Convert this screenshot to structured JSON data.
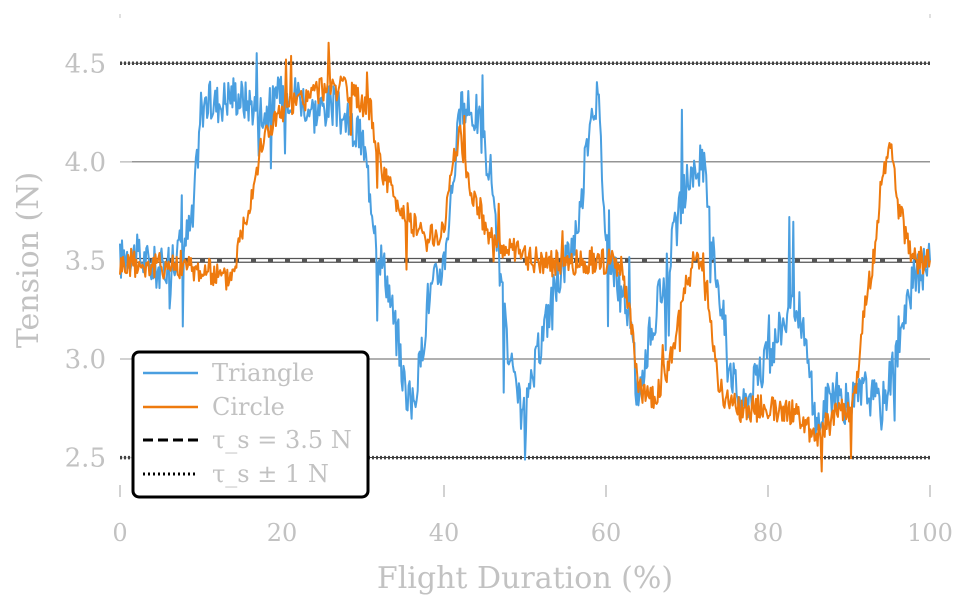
{
  "chart_data": {
    "type": "line",
    "title": "",
    "xlabel": "Flight Duration (%)",
    "ylabel": "Tension (N)",
    "xlim": [
      0,
      100
    ],
    "ylim": [
      2.3,
      4.75
    ],
    "x_ticks": [
      "0",
      "20",
      "40",
      "60",
      "80",
      "100"
    ],
    "y_ticks": [
      "2.5",
      "3.0",
      "3.5",
      "4.0",
      "4.5"
    ],
    "grid": "horizontal lines at y ticks",
    "legend_position": "lower-left",
    "legend": {
      "triangle": "Triangle",
      "circle": "Circle",
      "setpoint": "τ_s = 3.5 N",
      "bounds": "τ_s ± 1 N"
    },
    "reference_lines": [
      {
        "name": "setpoint",
        "y": 3.5,
        "style": "dashed"
      },
      {
        "name": "bounds",
        "y": [
          2.5,
          4.5
        ],
        "style": "dotted"
      }
    ],
    "series": [
      {
        "name": "Triangle",
        "color": "#4a9fe0",
        "x": [
          0,
          1,
          3,
          5,
          6,
          7,
          8,
          9,
          10,
          12,
          14,
          16,
          18,
          20,
          22,
          24,
          26,
          28,
          30,
          32,
          33,
          34,
          35,
          36,
          37,
          38,
          40,
          42,
          44,
          46,
          47,
          48,
          49,
          50,
          52,
          54,
          56,
          57,
          58,
          59,
          60,
          61,
          62,
          63,
          64,
          65,
          66,
          68,
          70,
          72,
          73,
          74,
          75,
          76,
          77,
          78,
          80,
          82,
          84,
          86,
          88,
          90,
          91,
          92,
          94,
          96,
          98,
          100
        ],
        "y": [
          3.5,
          3.55,
          3.5,
          3.45,
          3.5,
          3.55,
          3.6,
          3.7,
          4.3,
          4.3,
          4.35,
          4.3,
          4.25,
          4.35,
          4.35,
          4.25,
          4.3,
          4.2,
          4.1,
          3.55,
          3.4,
          3.15,
          2.9,
          2.75,
          2.95,
          3.3,
          3.5,
          4.25,
          4.25,
          3.9,
          3.4,
          3.0,
          2.8,
          2.7,
          3.1,
          3.4,
          3.6,
          3.8,
          4.25,
          4.35,
          3.6,
          3.45,
          3.3,
          3.2,
          2.75,
          3.05,
          3.2,
          3.55,
          3.9,
          4.0,
          3.6,
          3.35,
          3.05,
          2.85,
          2.75,
          2.85,
          3.0,
          3.2,
          3.25,
          2.65,
          2.85,
          2.75,
          2.8,
          2.85,
          2.75,
          3.05,
          3.4,
          3.5
        ]
      },
      {
        "name": "Circle",
        "color": "#ee7a0e",
        "x": [
          0,
          2,
          4,
          6,
          8,
          10,
          12,
          13,
          14,
          15,
          16,
          17,
          18,
          20,
          22,
          24,
          26,
          28,
          30,
          31,
          32,
          34,
          36,
          38,
          40,
          41,
          42,
          43,
          44,
          46,
          48,
          50,
          52,
          54,
          56,
          58,
          60,
          62,
          63,
          64,
          66,
          68,
          70,
          71,
          72,
          74,
          76,
          78,
          80,
          82,
          84,
          86,
          88,
          90,
          91,
          92,
          93,
          94,
          95,
          96,
          98,
          100
        ],
        "y": [
          3.48,
          3.48,
          3.47,
          3.48,
          3.47,
          3.45,
          3.43,
          3.4,
          3.45,
          3.65,
          3.8,
          4.0,
          4.15,
          4.25,
          4.3,
          4.35,
          4.4,
          4.35,
          4.3,
          4.25,
          4.0,
          3.8,
          3.7,
          3.6,
          3.65,
          4.0,
          4.15,
          3.9,
          3.8,
          3.6,
          3.55,
          3.52,
          3.5,
          3.48,
          3.48,
          3.5,
          3.5,
          3.45,
          3.2,
          2.85,
          2.8,
          3.0,
          3.4,
          3.5,
          3.5,
          2.85,
          2.75,
          2.75,
          2.75,
          2.75,
          2.7,
          2.6,
          2.7,
          2.75,
          2.9,
          3.3,
          3.5,
          3.9,
          4.1,
          3.8,
          3.5,
          3.5
        ]
      }
    ]
  }
}
